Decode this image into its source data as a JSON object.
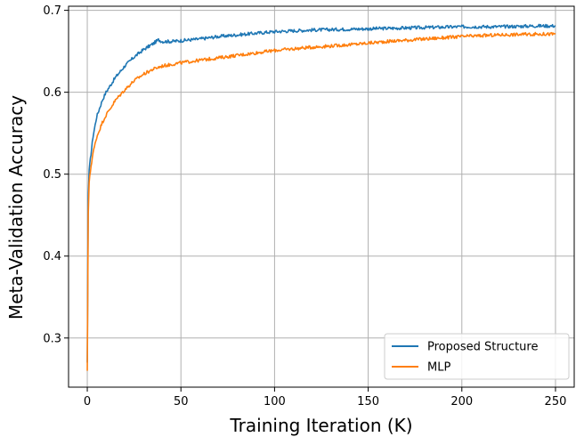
{
  "chart_data": {
    "type": "line",
    "xlabel": "Training Iteration (K)",
    "ylabel": "Meta-Validation Accuracy",
    "xlim": [
      -10,
      260
    ],
    "ylim": [
      0.24,
      0.705
    ],
    "xticks": [
      0,
      50,
      100,
      150,
      200,
      250
    ],
    "xtick_labels": [
      "0",
      "50",
      "100",
      "150",
      "200",
      "250"
    ],
    "yticks": [
      0.3,
      0.4,
      0.5,
      0.6,
      0.7
    ],
    "ytick_labels": [
      "0.3",
      "0.4",
      "0.5",
      "0.6",
      "0.7"
    ],
    "grid": true,
    "legend_position": "bottom-right",
    "series": [
      {
        "name": "Proposed Structure",
        "color": "#1f77b4",
        "x": [
          0,
          0.5,
          1,
          2,
          3,
          5,
          8,
          10,
          15,
          20,
          25,
          30,
          35,
          38,
          40,
          45,
          50,
          60,
          70,
          80,
          90,
          100,
          120,
          140,
          160,
          180,
          200,
          220,
          240,
          250
        ],
        "y": [
          0.27,
          0.47,
          0.505,
          0.525,
          0.545,
          0.57,
          0.59,
          0.6,
          0.618,
          0.632,
          0.643,
          0.652,
          0.659,
          0.664,
          0.662,
          0.662,
          0.663,
          0.665,
          0.668,
          0.67,
          0.672,
          0.674,
          0.676,
          0.677,
          0.678,
          0.679,
          0.68,
          0.68,
          0.681,
          0.681
        ]
      },
      {
        "name": "MLP",
        "color": "#ff7f0e",
        "x": [
          0,
          0.5,
          1,
          2,
          3,
          5,
          8,
          10,
          15,
          20,
          25,
          30,
          35,
          40,
          45,
          50,
          60,
          70,
          80,
          90,
          100,
          120,
          140,
          160,
          180,
          200,
          220,
          240,
          250
        ],
        "y": [
          0.26,
          0.45,
          0.49,
          0.51,
          0.525,
          0.545,
          0.563,
          0.572,
          0.59,
          0.603,
          0.614,
          0.622,
          0.628,
          0.632,
          0.634,
          0.636,
          0.639,
          0.642,
          0.645,
          0.648,
          0.651,
          0.655,
          0.658,
          0.662,
          0.665,
          0.668,
          0.67,
          0.671,
          0.671
        ]
      }
    ]
  }
}
